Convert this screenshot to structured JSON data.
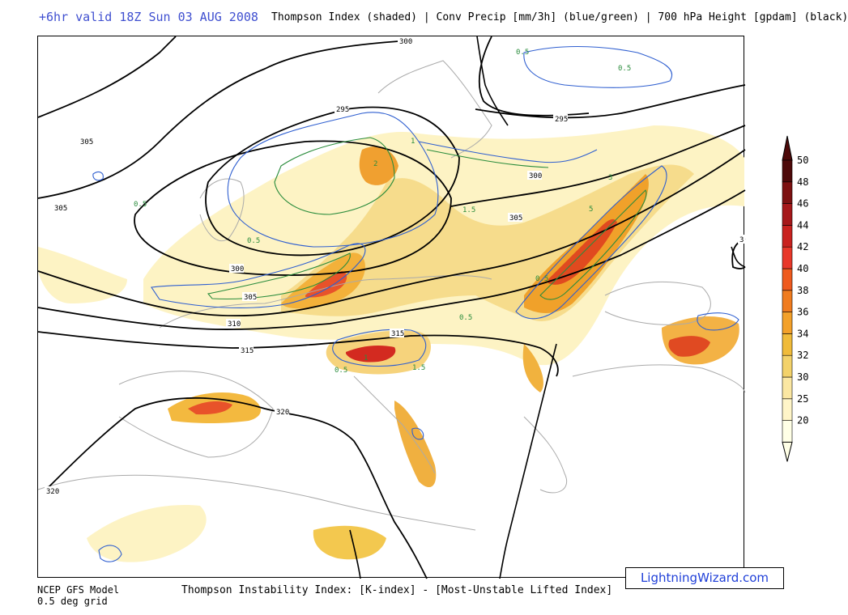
{
  "header": {
    "valid_time": "+6hr valid 18Z Sun 03 AUG 2008",
    "fields": "Thompson Index (shaded) | Conv Precip [mm/3h] (blue/green) | 700 hPa Height [gpdam] (black)"
  },
  "map": {
    "height_contour_labels": [
      "300",
      "305",
      "305",
      "295",
      "295",
      "300",
      "305",
      "300",
      "305",
      "310",
      "315",
      "315",
      "320",
      "320",
      "3"
    ],
    "precip_labels": [
      "0.5",
      "0.5",
      "0.5",
      "0.5",
      "1",
      "1.5",
      "2",
      "3",
      "5",
      "0.5",
      "0.5",
      "1",
      "1.5",
      "0.5"
    ],
    "colors": {
      "height_contour": "#000000",
      "precip_light": "#2f5fd0",
      "precip_heavy": "#2a8c3c",
      "coastline": "#aaaaaa",
      "border": "#000000"
    }
  },
  "colorbar": {
    "ticks": [
      "50",
      "48",
      "46",
      "44",
      "42",
      "40",
      "38",
      "36",
      "34",
      "32",
      "30",
      "25",
      "20"
    ],
    "colors": [
      "#ffffe6",
      "#fff5c8",
      "#fbe7a2",
      "#f3d26a",
      "#f0bb3a",
      "#f3a12a",
      "#f07c1f",
      "#ee5a1e",
      "#e8382a",
      "#c9221f",
      "#a6181a",
      "#7d1111",
      "#4e0a0a"
    ]
  },
  "footer": {
    "model": "NCEP GFS Model",
    "grid": "0.5 deg grid",
    "index_definition": "Thompson Instability Index: [K-index] - [Most-Unstable Lifted Index]",
    "brand": "LightningWizard.com"
  }
}
